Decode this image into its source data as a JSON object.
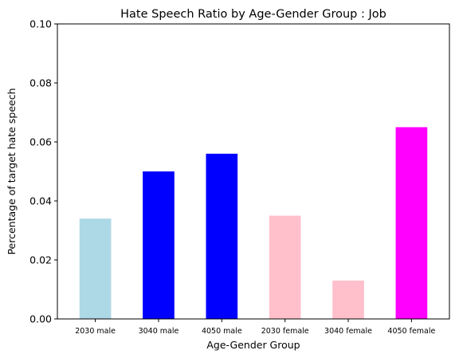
{
  "chart_data": {
    "type": "bar",
    "title": "Hate Speech Ratio by Age-Gender Group : Job",
    "xlabel": "Age-Gender Group",
    "ylabel": "Percentage of target hate speech",
    "categories": [
      "2030 male",
      "3040 male",
      "4050 male",
      "2030 female",
      "3040 female",
      "4050 female"
    ],
    "values": [
      0.034,
      0.05,
      0.056,
      0.035,
      0.013,
      0.065
    ],
    "colors": [
      "#add8e6",
      "#0000ff",
      "#0000ff",
      "#ffc0cb",
      "#ffc0cb",
      "#ff00ff"
    ],
    "ylim": [
      0,
      0.1
    ],
    "yticks": [
      "0.00",
      "0.02",
      "0.04",
      "0.06",
      "0.08",
      "0.10"
    ],
    "grid": false,
    "legend": "none"
  }
}
